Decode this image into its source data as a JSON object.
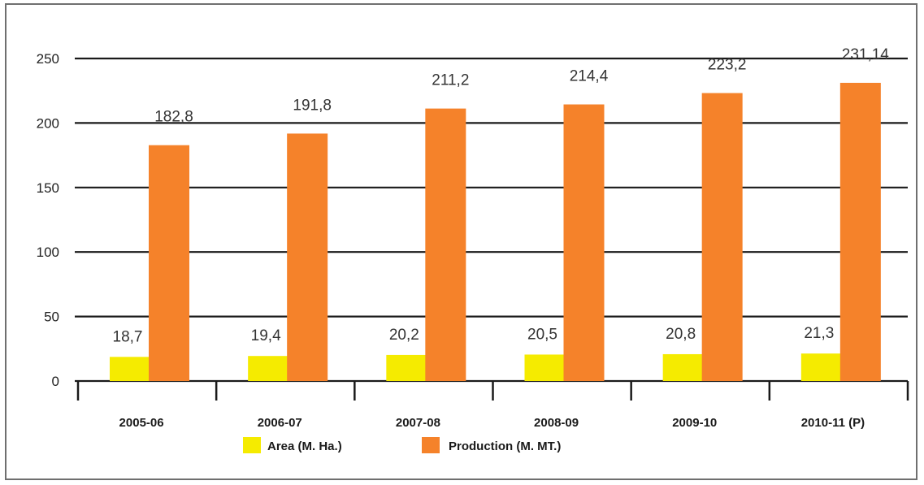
{
  "colors": {
    "area": "#f5eb00",
    "production": "#f5822a",
    "gridline": "#1a1a1a"
  },
  "chart_data": {
    "type": "bar",
    "categories": [
      "2005-06",
      "2006-07",
      "2007-08",
      "2008-09",
      "2009-10",
      "2010-11 (P)"
    ],
    "series": [
      {
        "name": "Area (M. Ha.)",
        "values": [
          18.7,
          19.4,
          20.2,
          20.5,
          20.8,
          21.3
        ],
        "labels": [
          "18,7",
          "19,4",
          "20,2",
          "20,5",
          "20,8",
          "21,3"
        ]
      },
      {
        "name": "Production (M. MT.)",
        "values": [
          182.8,
          191.8,
          211.2,
          214.4,
          223.2,
          231.14
        ],
        "labels": [
          "182,8",
          "191,8",
          "211,2",
          "214,4",
          "223,2",
          "231,14"
        ]
      }
    ],
    "ylim": [
      0,
      250
    ],
    "yticks": [
      "0",
      "50",
      "100",
      "150",
      "200",
      "250"
    ],
    "grid": true,
    "legend": "bottom-center"
  }
}
